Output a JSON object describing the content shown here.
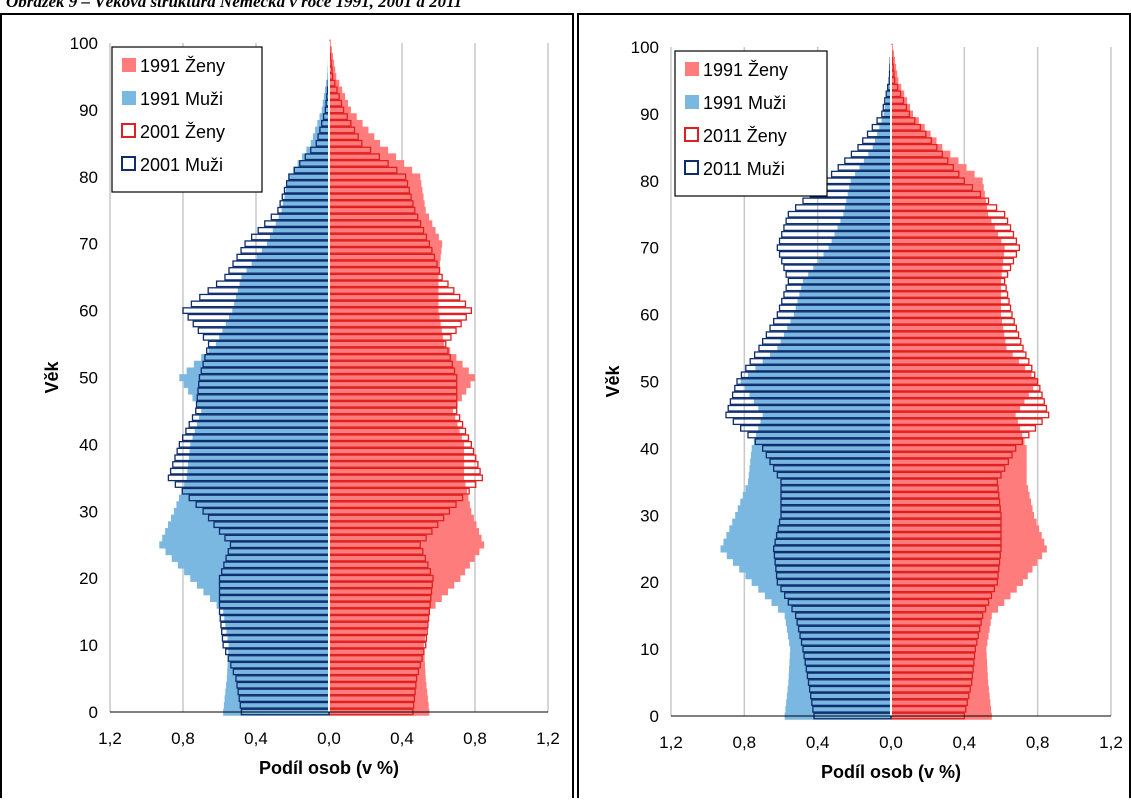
{
  "page": {
    "caption": "Obrázek 9 – Věková struktura Německa v roce 1991, 2001 a 2011"
  },
  "colors": {
    "female_1991": "#ff7c7c",
    "male_1991": "#7ab8e2",
    "female_outline": "#e02020",
    "male_outline": "#0d2d6e",
    "grid": "#c8c8c8",
    "center_line": "#ffffff"
  },
  "chart_data": [
    {
      "type": "bar",
      "subtype": "population-pyramid",
      "xlabel": "Podíl osob (v %)",
      "ylabel": "Věk",
      "xlim": [
        -1.2,
        1.2
      ],
      "ylim": [
        0,
        100
      ],
      "x_ticks": [
        "1,2",
        "0,8",
        "0,4",
        "0,0",
        "0,4",
        "0,8",
        "1,2"
      ],
      "y_ticks": [
        "0",
        "10",
        "20",
        "30",
        "40",
        "50",
        "60",
        "70",
        "80",
        "90",
        "100"
      ],
      "grid": "vertical",
      "legend_position": "top-left",
      "ages": [
        0,
        5,
        10,
        15,
        20,
        25,
        30,
        35,
        40,
        45,
        50,
        55,
        60,
        65,
        70,
        75,
        80,
        85,
        90,
        95,
        100
      ],
      "series": [
        {
          "name": "1991 Ženy",
          "style": "filled",
          "side": "right",
          "values": [
            0.55,
            0.53,
            0.52,
            0.55,
            0.72,
            0.85,
            0.78,
            0.74,
            0.74,
            0.68,
            0.8,
            0.63,
            0.6,
            0.6,
            0.62,
            0.53,
            0.5,
            0.28,
            0.12,
            0.04,
            0.01
          ]
        },
        {
          "name": "1991 Muži",
          "style": "filled",
          "side": "left",
          "values": [
            0.58,
            0.56,
            0.55,
            0.58,
            0.76,
            0.93,
            0.85,
            0.78,
            0.76,
            0.7,
            0.82,
            0.62,
            0.53,
            0.48,
            0.34,
            0.26,
            0.22,
            0.1,
            0.04,
            0.01,
            0.0
          ]
        },
        {
          "name": "2001 Ženy",
          "style": "outline",
          "side": "right",
          "values": [
            0.46,
            0.48,
            0.53,
            0.55,
            0.57,
            0.5,
            0.66,
            0.84,
            0.78,
            0.7,
            0.7,
            0.64,
            0.78,
            0.62,
            0.55,
            0.47,
            0.42,
            0.18,
            0.08,
            0.02,
            0.0
          ]
        },
        {
          "name": "2001 Muži",
          "style": "outline",
          "side": "left",
          "values": [
            0.48,
            0.51,
            0.58,
            0.6,
            0.6,
            0.54,
            0.69,
            0.88,
            0.82,
            0.73,
            0.71,
            0.66,
            0.8,
            0.57,
            0.46,
            0.28,
            0.22,
            0.07,
            0.02,
            0.0,
            0.0
          ]
        }
      ]
    },
    {
      "type": "bar",
      "subtype": "population-pyramid",
      "xlabel": "Podíl osob (v %)",
      "ylabel": "Věk",
      "xlim": [
        -1.2,
        1.2
      ],
      "ylim": [
        0,
        100
      ],
      "x_ticks": [
        "1,2",
        "0,8",
        "0,4",
        "0,0",
        "0,4",
        "0,8",
        "1,2"
      ],
      "y_ticks": [
        "0",
        "10",
        "20",
        "30",
        "40",
        "50",
        "60",
        "70",
        "80",
        "90",
        "100"
      ],
      "grid": "vertical",
      "legend_position": "top-left",
      "ages": [
        0,
        5,
        10,
        15,
        20,
        25,
        30,
        35,
        40,
        45,
        50,
        55,
        60,
        65,
        70,
        75,
        80,
        85,
        90,
        95,
        100
      ],
      "series": [
        {
          "name": "1991 Ženy",
          "style": "filled",
          "side": "right",
          "values": [
            0.55,
            0.53,
            0.52,
            0.55,
            0.72,
            0.85,
            0.78,
            0.74,
            0.74,
            0.68,
            0.8,
            0.63,
            0.6,
            0.6,
            0.62,
            0.53,
            0.5,
            0.28,
            0.12,
            0.04,
            0.01
          ]
        },
        {
          "name": "1991 Muži",
          "style": "filled",
          "side": "left",
          "values": [
            0.58,
            0.56,
            0.55,
            0.58,
            0.76,
            0.93,
            0.85,
            0.78,
            0.76,
            0.7,
            0.82,
            0.62,
            0.53,
            0.48,
            0.34,
            0.26,
            0.22,
            0.1,
            0.04,
            0.01,
            0.0
          ]
        },
        {
          "name": "2011 Ženy",
          "style": "outline",
          "side": "right",
          "values": [
            0.4,
            0.44,
            0.46,
            0.5,
            0.58,
            0.6,
            0.6,
            0.58,
            0.68,
            0.86,
            0.8,
            0.72,
            0.66,
            0.62,
            0.7,
            0.62,
            0.4,
            0.25,
            0.1,
            0.02,
            0.0
          ]
        },
        {
          "name": "2011 Muži",
          "style": "outline",
          "side": "left",
          "values": [
            0.42,
            0.45,
            0.48,
            0.52,
            0.62,
            0.64,
            0.6,
            0.6,
            0.7,
            0.9,
            0.84,
            0.72,
            0.62,
            0.56,
            0.62,
            0.56,
            0.36,
            0.18,
            0.05,
            0.01,
            0.0
          ]
        }
      ]
    }
  ]
}
